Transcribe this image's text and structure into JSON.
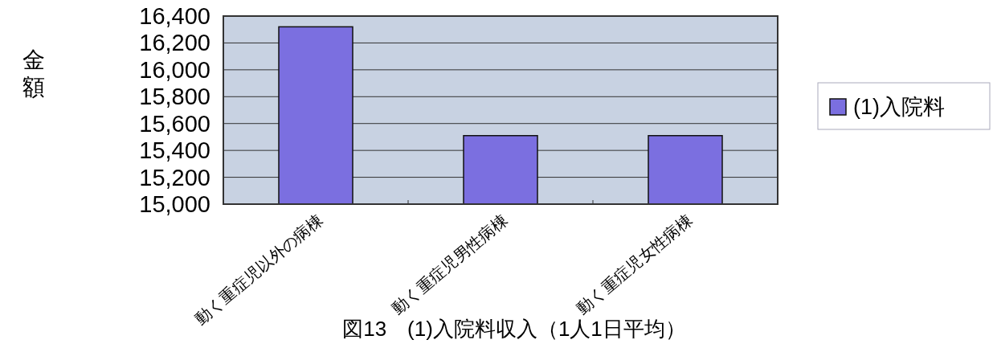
{
  "chart_data": {
    "type": "bar",
    "ylabel": "金額",
    "categories": [
      "動く重症児以外の病棟",
      "動く重症児男性病棟",
      "動く重症児女性病棟"
    ],
    "series": [
      {
        "name": "(1)入院料",
        "color": "#7b6fe0",
        "values": [
          16320,
          15510,
          15510
        ]
      }
    ],
    "ylim": [
      15000,
      16400
    ],
    "yticks": [
      {
        "value": 15000,
        "label": "15,000"
      },
      {
        "value": 15200,
        "label": "15,200"
      },
      {
        "value": 15400,
        "label": "15,400"
      },
      {
        "value": 15600,
        "label": "15,600"
      },
      {
        "value": 15800,
        "label": "15,800"
      },
      {
        "value": 16000,
        "label": "16,000"
      },
      {
        "value": 16200,
        "label": "16,200"
      },
      {
        "value": 16400,
        "label": "16,400"
      }
    ],
    "grid": "y",
    "legend": "right",
    "annotations": [
      "図13　(1)入院料収入（1人1日平均）"
    ]
  }
}
